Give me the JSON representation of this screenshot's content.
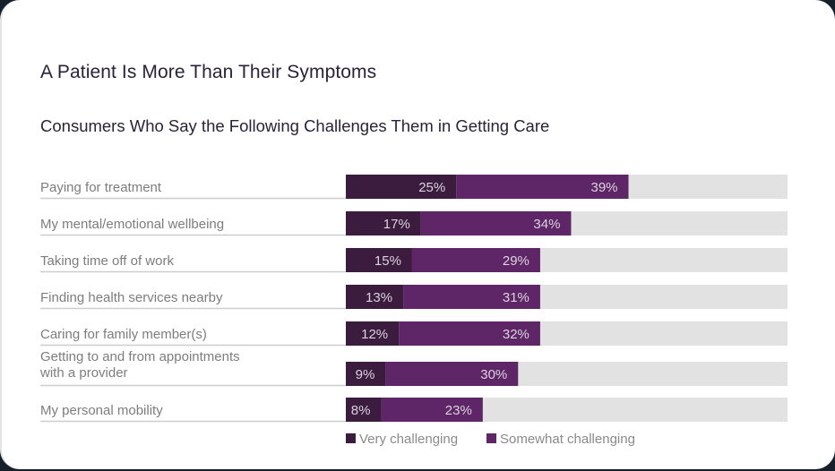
{
  "header": {
    "title": "A Patient Is More Than Their Symptoms",
    "subtitle": "Consumers Who Say the Following Challenges Them in Getting Care"
  },
  "colors": {
    "very": "#3b1c3f",
    "somewhat": "#5e2667",
    "track": "#e2e2e2",
    "separator": "#cdcdcd",
    "frame": "#16202b"
  },
  "chart_data": {
    "type": "bar",
    "orientation": "horizontal",
    "stacked": true,
    "title": "A Patient Is More Than Their Symptoms",
    "subtitle": "Consumers Who Say the Following Challenges Them in Getting Care",
    "xlabel": "",
    "ylabel": "",
    "xlim": [
      0,
      100
    ],
    "grid": false,
    "legend_position": "bottom",
    "categories": [
      [
        "Paying for treatment"
      ],
      [
        "My mental/emotional wellbeing"
      ],
      [
        "Taking time off of work"
      ],
      [
        "Finding health services nearby"
      ],
      [
        "Caring for family member(s)"
      ],
      [
        "Getting to and from appointments",
        "with a provider"
      ],
      [
        "My personal mobility"
      ]
    ],
    "series": [
      {
        "name": "Very challenging",
        "values": [
          25,
          17,
          15,
          13,
          12,
          9,
          8
        ],
        "labels": [
          "25%",
          "17%",
          "15%",
          "13%",
          "12%",
          "9%",
          "8%"
        ]
      },
      {
        "name": "Somewhat challenging",
        "values": [
          39,
          34,
          29,
          31,
          32,
          30,
          23
        ],
        "labels": [
          "39%",
          "34%",
          "29%",
          "31%",
          "32%",
          "30%",
          "23%"
        ]
      }
    ]
  }
}
